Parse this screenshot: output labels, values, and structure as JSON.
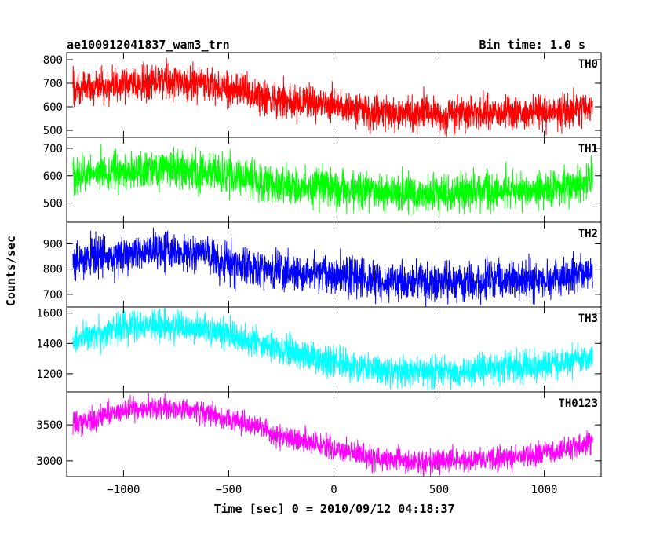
{
  "header": {
    "title": "ae100912041837_wam3_trn",
    "bin_time": "Bin time: 1.0 s"
  },
  "axes": {
    "xlabel": "Time [sec] 0 = 2010/09/12 04:18:37",
    "ylabel": "Counts/sec"
  },
  "chart_data": {
    "type": "line",
    "title": "ae100912041837_wam3_trn",
    "subtitle": "Bin time: 1.0 s",
    "xlabel": "Time [sec] 0 = 2010/09/12 04:18:37",
    "ylabel": "Counts/sec",
    "xlim": [
      -1270,
      1270
    ],
    "x_ticks": [
      -1000,
      -500,
      0,
      500,
      1000
    ],
    "x_tick_labels": [
      "−1000",
      "−500",
      "0",
      "500",
      "1000"
    ],
    "x_data_range": [
      -1240,
      1230
    ],
    "bin_time_s": 1.0,
    "panels": [
      {
        "name": "TH0",
        "color": "#ff0000",
        "ylim": [
          470,
          830
        ],
        "y_ticks": [
          500,
          600,
          700,
          800
        ],
        "noise": 38,
        "trend": [
          [
            -1240,
            680
          ],
          [
            -1000,
            695
          ],
          [
            -850,
            705
          ],
          [
            -650,
            700
          ],
          [
            -450,
            670
          ],
          [
            -250,
            625
          ],
          [
            0,
            605
          ],
          [
            200,
            575
          ],
          [
            400,
            570
          ],
          [
            600,
            570
          ],
          [
            800,
            575
          ],
          [
            1000,
            578
          ],
          [
            1100,
            580
          ],
          [
            1230,
            600
          ]
        ]
      },
      {
        "name": "TH1",
        "color": "#00ff00",
        "ylim": [
          430,
          740
        ],
        "y_ticks": [
          500,
          600,
          700
        ],
        "noise": 35,
        "trend": [
          [
            -1240,
            600
          ],
          [
            -1000,
            615
          ],
          [
            -800,
            625
          ],
          [
            -650,
            618
          ],
          [
            -450,
            590
          ],
          [
            -250,
            565
          ],
          [
            0,
            555
          ],
          [
            200,
            540
          ],
          [
            400,
            535
          ],
          [
            600,
            538
          ],
          [
            800,
            545
          ],
          [
            1000,
            548
          ],
          [
            1100,
            555
          ],
          [
            1230,
            580
          ]
        ]
      },
      {
        "name": "TH2",
        "color": "#0000ff",
        "ylim": [
          650,
          985
        ],
        "y_ticks": [
          700,
          800,
          900
        ],
        "noise": 38,
        "trend": [
          [
            -1240,
            840
          ],
          [
            -1000,
            860
          ],
          [
            -850,
            872
          ],
          [
            -650,
            860
          ],
          [
            -450,
            815
          ],
          [
            -250,
            790
          ],
          [
            0,
            775
          ],
          [
            200,
            752
          ],
          [
            400,
            748
          ],
          [
            600,
            748
          ],
          [
            800,
            755
          ],
          [
            1000,
            760
          ],
          [
            1100,
            768
          ],
          [
            1230,
            795
          ]
        ]
      },
      {
        "name": "TH3",
        "color": "#00ffff",
        "ylim": [
          1080,
          1640
        ],
        "y_ticks": [
          1200,
          1400,
          1600
        ],
        "noise": 50,
        "trend": [
          [
            -1240,
            1430
          ],
          [
            -1000,
            1510
          ],
          [
            -850,
            1530
          ],
          [
            -650,
            1505
          ],
          [
            -450,
            1440
          ],
          [
            -250,
            1360
          ],
          [
            0,
            1270
          ],
          [
            200,
            1225
          ],
          [
            400,
            1210
          ],
          [
            600,
            1215
          ],
          [
            800,
            1235
          ],
          [
            1000,
            1255
          ],
          [
            1100,
            1265
          ],
          [
            1230,
            1310
          ]
        ]
      },
      {
        "name": "TH0123",
        "color": "#ff00ff",
        "ylim": [
          2780,
          3960
        ],
        "y_ticks": [
          3000,
          3500
        ],
        "noise": 80,
        "trend": [
          [
            -1240,
            3520
          ],
          [
            -1000,
            3700
          ],
          [
            -850,
            3750
          ],
          [
            -650,
            3700
          ],
          [
            -450,
            3550
          ],
          [
            -250,
            3350
          ],
          [
            0,
            3170
          ],
          [
            200,
            3030
          ],
          [
            400,
            2990
          ],
          [
            600,
            3000
          ],
          [
            800,
            3040
          ],
          [
            1000,
            3100
          ],
          [
            1100,
            3160
          ],
          [
            1230,
            3250
          ]
        ]
      }
    ]
  }
}
